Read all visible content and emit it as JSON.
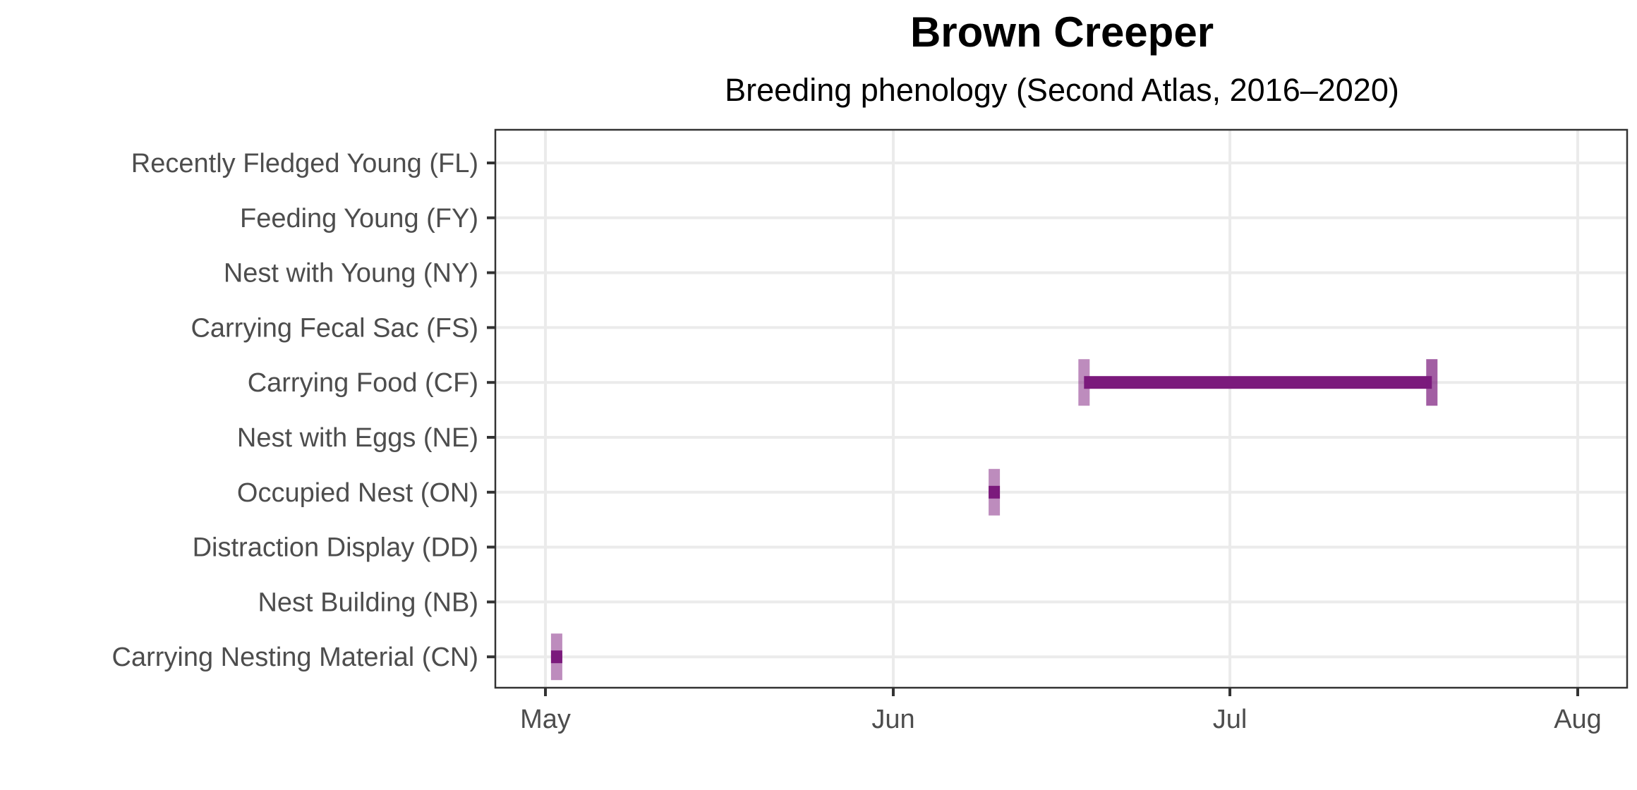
{
  "chart_data": {
    "type": "timeline",
    "title": "Brown Creeper",
    "subtitle": "Breeding phenology (Second Atlas, 2016–2020)",
    "categories": [
      "Recently Fledged Young (FL)",
      "Feeding Young (FY)",
      "Nest with Young (NY)",
      "Carrying Fecal Sac (FS)",
      "Carrying Food (CF)",
      "Nest with Eggs (NE)",
      "Occupied Nest (ON)",
      "Distraction Display (DD)",
      "Nest Building (NB)",
      "Carrying Nesting Material (CN)"
    ],
    "x_ticks": [
      {
        "label": "May",
        "date": "05-01"
      },
      {
        "label": "Jun",
        "date": "06-01"
      },
      {
        "label": "Jul",
        "date": "07-01"
      },
      {
        "label": "Aug",
        "date": "08-01"
      }
    ],
    "xlim": [
      "04-27",
      "08-05"
    ],
    "grid": true,
    "intervals": [
      {
        "category": "Carrying Food (CF)",
        "start": "06-18",
        "end": "07-19",
        "start_opacity": 0.5,
        "end_opacity": 0.7
      },
      {
        "category": "Occupied Nest (ON)",
        "start": "06-10",
        "end": "06-10",
        "start_opacity": 0.5,
        "end_opacity": 0.5
      },
      {
        "category": "Carrying Nesting Material (CN)",
        "start": "05-02",
        "end": "05-02",
        "start_opacity": 0.5,
        "end_opacity": 0.5
      }
    ],
    "colors": {
      "interval": "#7b1a7c",
      "gridline": "#ebebeb",
      "panel_border": "#333333",
      "tick_label": "#4d4d4d"
    }
  }
}
